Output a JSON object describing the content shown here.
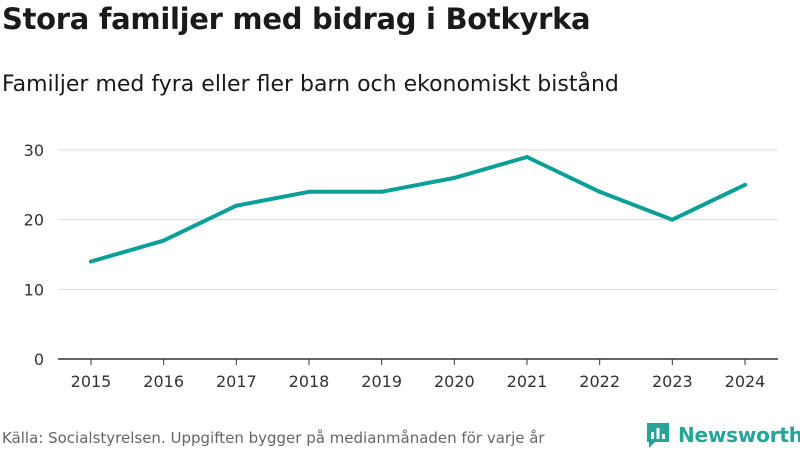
{
  "header": {
    "title": "Stora familjer med bidrag i Botkyrka",
    "subtitle": "Familjer med fyra eller fler barn och ekonomiskt bistånd"
  },
  "footer": {
    "source": "Källa: Socialstyrelsen. Uppgiften bygger på medianmånaden för varje år",
    "brand": "Newsworthy",
    "brand_icon": "newsworthy-logo-icon"
  },
  "colors": {
    "line": "#0aa098",
    "grid": "#dddddd",
    "axis": "#333333",
    "brand": "#27a39a"
  },
  "chart_data": {
    "type": "line",
    "x": [
      "2015",
      "2016",
      "2017",
      "2018",
      "2019",
      "2020",
      "2021",
      "2022",
      "2023",
      "2024"
    ],
    "series": [
      {
        "values": [
          14,
          17,
          22,
          24,
          24,
          26,
          29,
          24,
          20,
          25
        ]
      }
    ],
    "yticks": [
      0,
      10,
      20,
      30
    ],
    "ylim": [
      0,
      30
    ],
    "grid": true,
    "legend": "none"
  }
}
